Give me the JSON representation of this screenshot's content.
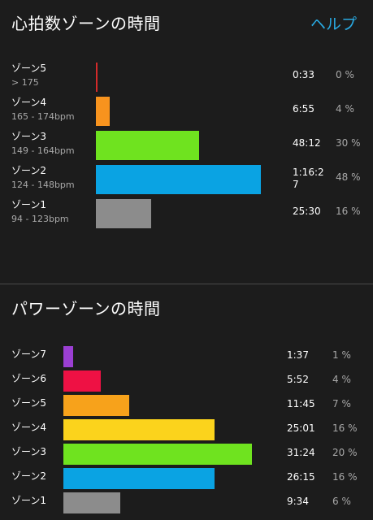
{
  "heart_rate": {
    "title": "心拍数ゾーンの時間",
    "help_label": "ヘルプ",
    "zones": [
      {
        "name": "ゾーン5",
        "range": "> 175",
        "time_line1": "0:33",
        "time_line2": "",
        "percent_label": "0 %",
        "percent": 0.5,
        "color": "#d42a2a"
      },
      {
        "name": "ゾーン4",
        "range": "165 - 174bpm",
        "time_line1": "6:55",
        "time_line2": "",
        "percent_label": "4 %",
        "percent": 4,
        "color": "#f7931e"
      },
      {
        "name": "ゾーン3",
        "range": "149 - 164bpm",
        "time_line1": "48:12",
        "time_line2": "",
        "percent_label": "30 %",
        "percent": 30,
        "color": "#6fe31f"
      },
      {
        "name": "ゾーン2",
        "range": "124 - 148bpm",
        "time_line1": "1:16:2",
        "time_line2": "7",
        "percent_label": "48 %",
        "percent": 48,
        "color": "#0aa3e3"
      },
      {
        "name": "ゾーン1",
        "range": "94 - 123bpm",
        "time_line1": "25:30",
        "time_line2": "",
        "percent_label": "16 %",
        "percent": 16,
        "color": "#8c8c8c"
      }
    ]
  },
  "power": {
    "title": "パワーゾーンの時間",
    "zones": [
      {
        "name": "ゾーン7",
        "time": "1:37",
        "percent_label": "1 %",
        "percent": 1,
        "color": "#9b3fd3"
      },
      {
        "name": "ゾーン6",
        "time": "5:52",
        "percent_label": "4 %",
        "percent": 4,
        "color": "#ee1144"
      },
      {
        "name": "ゾーン5",
        "time": "11:45",
        "percent_label": "7 %",
        "percent": 7,
        "color": "#f7a21b"
      },
      {
        "name": "ゾーン4",
        "time": "25:01",
        "percent_label": "16 %",
        "percent": 16,
        "color": "#fbd31c"
      },
      {
        "name": "ゾーン3",
        "time": "31:24",
        "percent_label": "20 %",
        "percent": 20,
        "color": "#6fe31f"
      },
      {
        "name": "ゾーン2",
        "time": "26:15",
        "percent_label": "16 %",
        "percent": 16,
        "color": "#0aa3e3"
      },
      {
        "name": "ゾーン1",
        "time": "9:34",
        "percent_label": "6 %",
        "percent": 6,
        "color": "#8c8c8c"
      }
    ]
  }
}
